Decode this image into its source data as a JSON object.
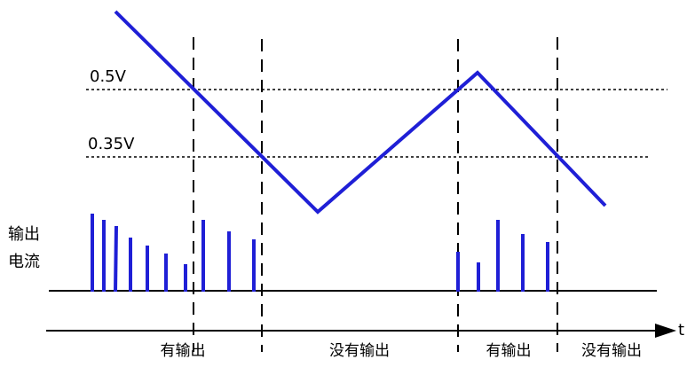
{
  "colors": {
    "waveform": "#1f1fd6",
    "pulses": "#1f1fd6",
    "lines": "#000000"
  },
  "thresholds": {
    "high_label": "0.5V",
    "low_label": "0.35V"
  },
  "axis": {
    "t_label": "t"
  },
  "y_label": {
    "line1": "输出",
    "line2": "电流"
  },
  "segments": {
    "s1": "有输出",
    "s2": "没有输出",
    "s3": "有输出",
    "s4": "没有输出"
  }
}
